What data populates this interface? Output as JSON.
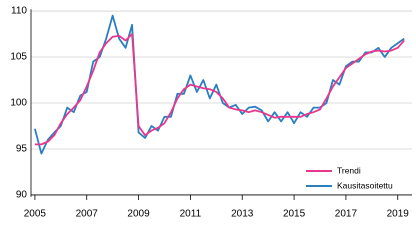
{
  "chart_data": {
    "type": "line",
    "x": [
      2005,
      2005.25,
      2005.5,
      2005.75,
      2006,
      2006.25,
      2006.5,
      2006.75,
      2007,
      2007.25,
      2007.5,
      2007.75,
      2008,
      2008.25,
      2008.5,
      2008.75,
      2009,
      2009.25,
      2009.5,
      2009.75,
      2010,
      2010.25,
      2010.5,
      2010.75,
      2011,
      2011.25,
      2011.5,
      2011.75,
      2012,
      2012.25,
      2012.5,
      2012.75,
      2013,
      2013.25,
      2013.5,
      2013.75,
      2014,
      2014.25,
      2014.5,
      2014.75,
      2015,
      2015.25,
      2015.5,
      2015.75,
      2016,
      2016.25,
      2016.5,
      2016.75,
      2017,
      2017.25,
      2017.5,
      2017.75,
      2018,
      2018.25,
      2018.5,
      2018.75,
      2019,
      2019.25
    ],
    "series": [
      {
        "name": "Trendi",
        "color": "#e8378f",
        "values": [
          95.5,
          95.5,
          95.8,
          96.5,
          97.8,
          98.8,
          99.5,
          100.3,
          101.8,
          103.5,
          105.5,
          106.5,
          107.2,
          107.3,
          106.8,
          107.5,
          97.5,
          96.5,
          97.0,
          97.3,
          97.8,
          99.0,
          100.5,
          101.5,
          102.0,
          101.8,
          101.6,
          101.5,
          101.2,
          100.5,
          99.5,
          99.3,
          99.2,
          99.0,
          99.2,
          99.0,
          98.7,
          98.4,
          98.5,
          98.5,
          98.5,
          98.5,
          98.8,
          99.0,
          99.3,
          100.5,
          101.8,
          102.8,
          103.8,
          104.3,
          104.8,
          105.3,
          105.6,
          105.7,
          105.6,
          105.7,
          106.0,
          106.8
        ]
      },
      {
        "name": "Kausitasoitettu",
        "color": "#2a7fc1",
        "values": [
          97.2,
          94.5,
          96.0,
          96.8,
          97.5,
          99.5,
          99.0,
          100.8,
          101.2,
          104.5,
          105.0,
          107.0,
          109.5,
          107.0,
          106.0,
          108.5,
          96.8,
          96.2,
          97.5,
          97.0,
          98.5,
          98.5,
          101.0,
          101.0,
          103.0,
          101.2,
          102.5,
          100.5,
          102.0,
          100.0,
          99.5,
          99.8,
          98.8,
          99.5,
          99.6,
          99.2,
          98.0,
          99.0,
          98.0,
          99.0,
          97.8,
          99.0,
          98.5,
          99.5,
          99.5,
          100.0,
          102.5,
          102.0,
          104.0,
          104.5,
          104.5,
          105.5,
          105.5,
          106.0,
          105.0,
          106.0,
          106.5,
          107.0
        ]
      }
    ],
    "xlim": [
      2004.85,
      2019.55
    ],
    "xticks": [
      2005,
      2007,
      2009,
      2011,
      2013,
      2015,
      2017,
      2019
    ],
    "ylim": [
      89.8,
      110.2
    ],
    "yticks": [
      90,
      95,
      100,
      105,
      110
    ],
    "grid": true,
    "legend": "lower right"
  }
}
